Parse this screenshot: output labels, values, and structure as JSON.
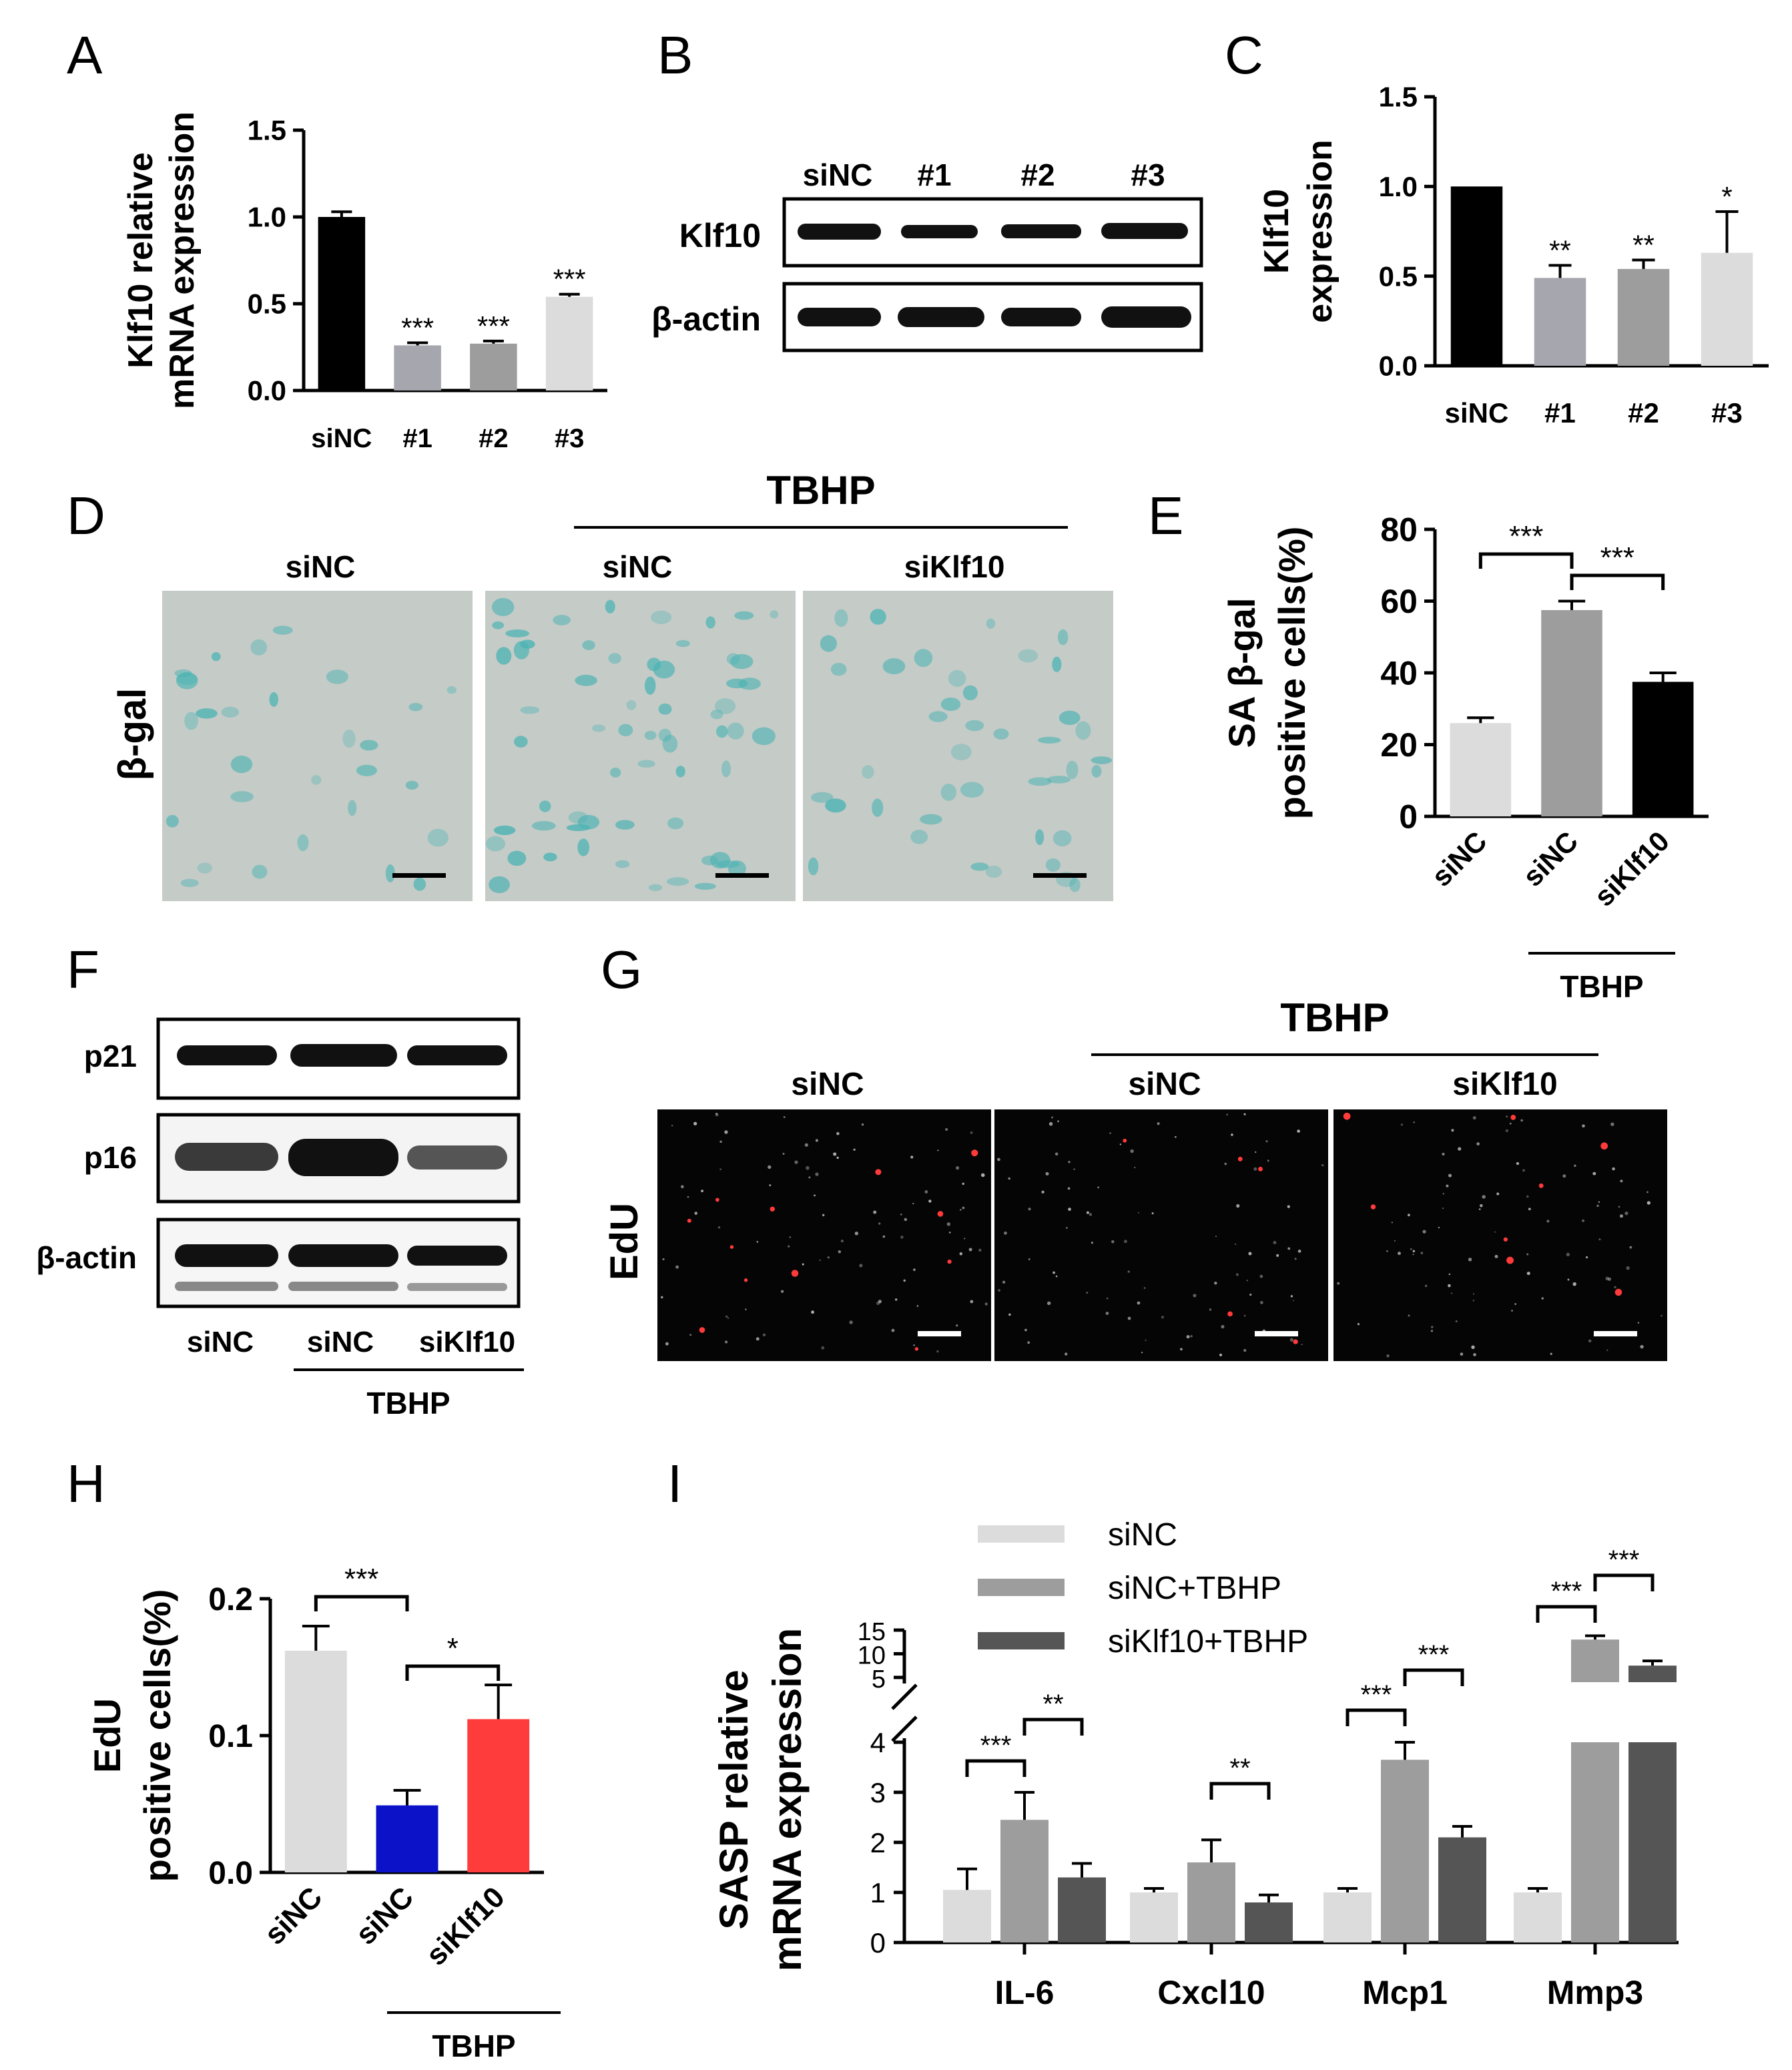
{
  "panel_letters": [
    "A",
    "B",
    "C",
    "D",
    "E",
    "F",
    "G",
    "H",
    "I"
  ],
  "colors": {
    "black": "#000000",
    "dark_gray": "#555555",
    "mid_gray": "#9d9d9d",
    "purple_gray": "#a6a6ae",
    "light_gray": "#dcdcdc",
    "blue": "#0b12c8",
    "red": "#ff3c3c",
    "stain_bg": "#c5cbc7",
    "stain_blue": "#4ab3b3",
    "fluor_bg": "#050505",
    "fluor_red": "#ff3a3a"
  },
  "panelB": {
    "lanes": [
      "siNC",
      "#1",
      "#2",
      "#3"
    ],
    "rows": [
      "Klf10",
      "β-actin"
    ]
  },
  "panelD": {
    "group_label": "TBHP",
    "column_labels": [
      "siNC",
      "siNC",
      "siKlf10"
    ],
    "row_label": "β-gal",
    "blue_stain_level": [
      0.25,
      0.8,
      0.45
    ]
  },
  "panelF": {
    "rows": [
      "p21",
      "p16",
      "β-actin"
    ],
    "lanes": [
      "siNC",
      "siNC",
      "siKlf10"
    ],
    "group_label": "TBHP"
  },
  "panelG": {
    "group_label": "TBHP",
    "column_labels": [
      "siNC",
      "siNC",
      "siKlf10"
    ],
    "row_label": "EdU"
  },
  "chart_data": [
    {
      "panel": "A",
      "type": "bar",
      "ylabel_lines": [
        "Klf10 relative",
        "mRNA expression"
      ],
      "categories": [
        "siNC",
        "#1",
        "#2",
        "#3"
      ],
      "values": [
        1.0,
        0.26,
        0.27,
        0.54
      ],
      "errors": [
        0.03,
        0.015,
        0.015,
        0.015
      ],
      "colors": [
        "#000000",
        "#a6a6ae",
        "#9d9d9d",
        "#dcdcdc"
      ],
      "significance": [
        "",
        "***",
        "***",
        "***"
      ],
      "ylim": [
        0,
        1.5
      ],
      "yticks": [
        "0.0",
        "0.5",
        "1.0",
        "1.5"
      ]
    },
    {
      "panel": "C",
      "type": "bar",
      "ylabel_lines": [
        "Klf10",
        "expression"
      ],
      "categories": [
        "siNC",
        "#1",
        "#2",
        "#3"
      ],
      "values": [
        1.0,
        0.49,
        0.54,
        0.63
      ],
      "errors": [
        0.0,
        0.07,
        0.05,
        0.23
      ],
      "colors": [
        "#000000",
        "#a6a6ae",
        "#9d9d9d",
        "#dcdcdc"
      ],
      "significance": [
        "",
        "**",
        "**",
        "*"
      ],
      "ylim": [
        0,
        1.5
      ],
      "yticks": [
        "0.0",
        "0.5",
        "1.0",
        "1.5"
      ]
    },
    {
      "panel": "E",
      "type": "bar",
      "ylabel_lines": [
        "SA β-gal",
        "positive cells(%)"
      ],
      "categories": [
        "siNC",
        "siNC",
        "siKlf10"
      ],
      "values": [
        26,
        57.5,
        37.5
      ],
      "errors": [
        1.5,
        2.5,
        2.5
      ],
      "colors": [
        "#dcdcdc",
        "#9d9d9d",
        "#000000"
      ],
      "comparisons": [
        {
          "from": 0,
          "to": 1,
          "label": "***"
        },
        {
          "from": 1,
          "to": 2,
          "label": "***"
        }
      ],
      "group_label": "TBHP",
      "ylim": [
        0,
        80
      ],
      "yticks": [
        "0",
        "20",
        "40",
        "60",
        "80"
      ]
    },
    {
      "panel": "H",
      "type": "bar",
      "ylabel_lines": [
        "EdU",
        "positive cells(%)"
      ],
      "categories": [
        "siNC",
        "siNC",
        "siKlf10"
      ],
      "values": [
        0.162,
        0.049,
        0.112
      ],
      "errors": [
        0.018,
        0.011,
        0.025
      ],
      "colors": [
        "#dcdcdc",
        "#0b12c8",
        "#ff3c3c"
      ],
      "comparisons": [
        {
          "from": 0,
          "to": 1,
          "label": "***"
        },
        {
          "from": 1,
          "to": 2,
          "label": "*"
        }
      ],
      "group_label": "TBHP",
      "ylim": [
        0,
        0.2
      ],
      "yticks": [
        "0.0",
        "0.1",
        "0.2"
      ]
    },
    {
      "panel": "I",
      "type": "bar",
      "ylabel_lines": [
        "SASP relative",
        "mRNA expression"
      ],
      "categories": [
        "IL-6",
        "Cxcl10",
        "Mcp1",
        "Mmp3"
      ],
      "series": [
        {
          "name": "siNC",
          "values": [
            1.05,
            1.0,
            1.0,
            1.0
          ],
          "errors": [
            0.42,
            0.08,
            0.08,
            0.08
          ],
          "color": "#dcdcdc"
        },
        {
          "name": "siNC+TBHP",
          "values": [
            2.45,
            1.6,
            3.65,
            13.0
          ],
          "errors": [
            0.55,
            0.45,
            0.35,
            0.8
          ],
          "color": "#9d9d9d"
        },
        {
          "name": "siKlf10+TBHP",
          "values": [
            1.3,
            0.8,
            2.1,
            7.5
          ],
          "errors": [
            0.28,
            0.15,
            0.22,
            1.0
          ],
          "color": "#555555"
        }
      ],
      "comparisons": [
        {
          "category": 0,
          "from": 0,
          "to": 1,
          "label": "***"
        },
        {
          "category": 0,
          "from": 1,
          "to": 2,
          "label": "**"
        },
        {
          "category": 1,
          "from": 1,
          "to": 2,
          "label": "**"
        },
        {
          "category": 2,
          "from": 0,
          "to": 1,
          "label": "***"
        },
        {
          "category": 2,
          "from": 1,
          "to": 2,
          "label": "***"
        },
        {
          "category": 3,
          "from": 0,
          "to": 1,
          "label": "***"
        },
        {
          "category": 3,
          "from": 1,
          "to": 2,
          "label": "***"
        }
      ],
      "broken_axis": true,
      "ylim_lower": [
        0,
        4
      ],
      "ylim_upper": [
        4,
        15
      ],
      "yticks_lower": [
        "0",
        "1",
        "2",
        "3",
        "4"
      ],
      "yticks_upper": [
        "5",
        "10",
        "15"
      ]
    }
  ]
}
